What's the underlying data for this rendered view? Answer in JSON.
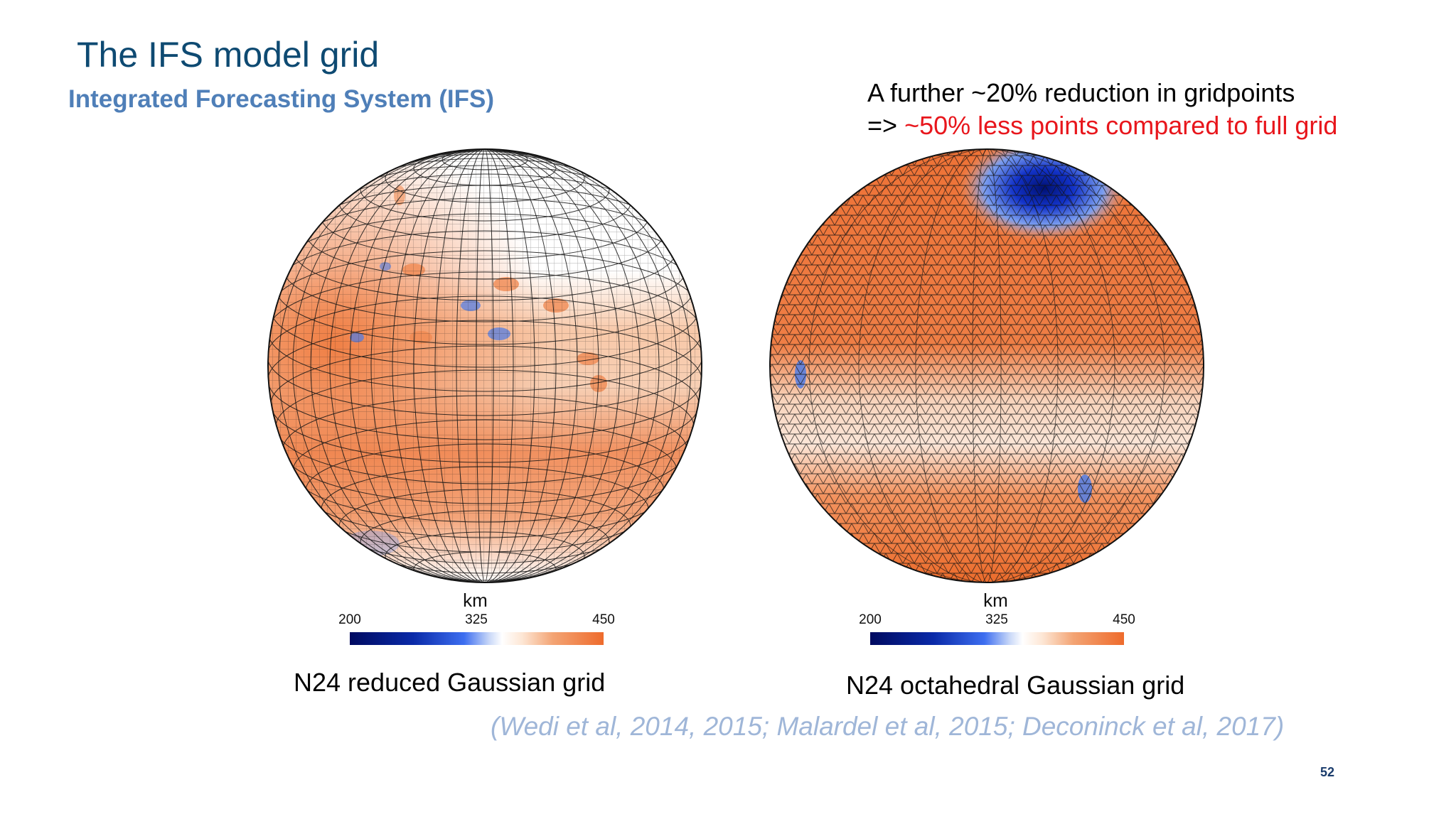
{
  "slide": {
    "title": "The IFS model grid",
    "subtitle": "Integrated Forecasting System (IFS)",
    "note_line1": "A further ~20% reduction in gridpoints",
    "note_line2_prefix": "=> ",
    "note_line2_highlight": "~50% less points compared to full grid",
    "highlight_color": "#e8161c",
    "citation": "(Wedi et al, 2014, 2015; Malardel et al, 2015; Deconinck et al, 2017)",
    "page_number": "52"
  },
  "panels": [
    {
      "caption": "N24 reduced Gaussian grid",
      "colorbar": {
        "unit": "km",
        "min_label": "200",
        "mid_label": "325",
        "max_label": "450"
      }
    },
    {
      "caption": "N24 octahedral Gaussian grid",
      "colorbar": {
        "unit": "km",
        "min_label": "200",
        "mid_label": "325",
        "max_label": "450"
      }
    }
  ],
  "colors": {
    "title": "#0e4a72",
    "subtitle": "#4f7fb8",
    "citation": "#9fb6d8",
    "scale_low": "#000a60",
    "scale_mid": "#ffffff",
    "scale_high": "#ee6b2c"
  }
}
